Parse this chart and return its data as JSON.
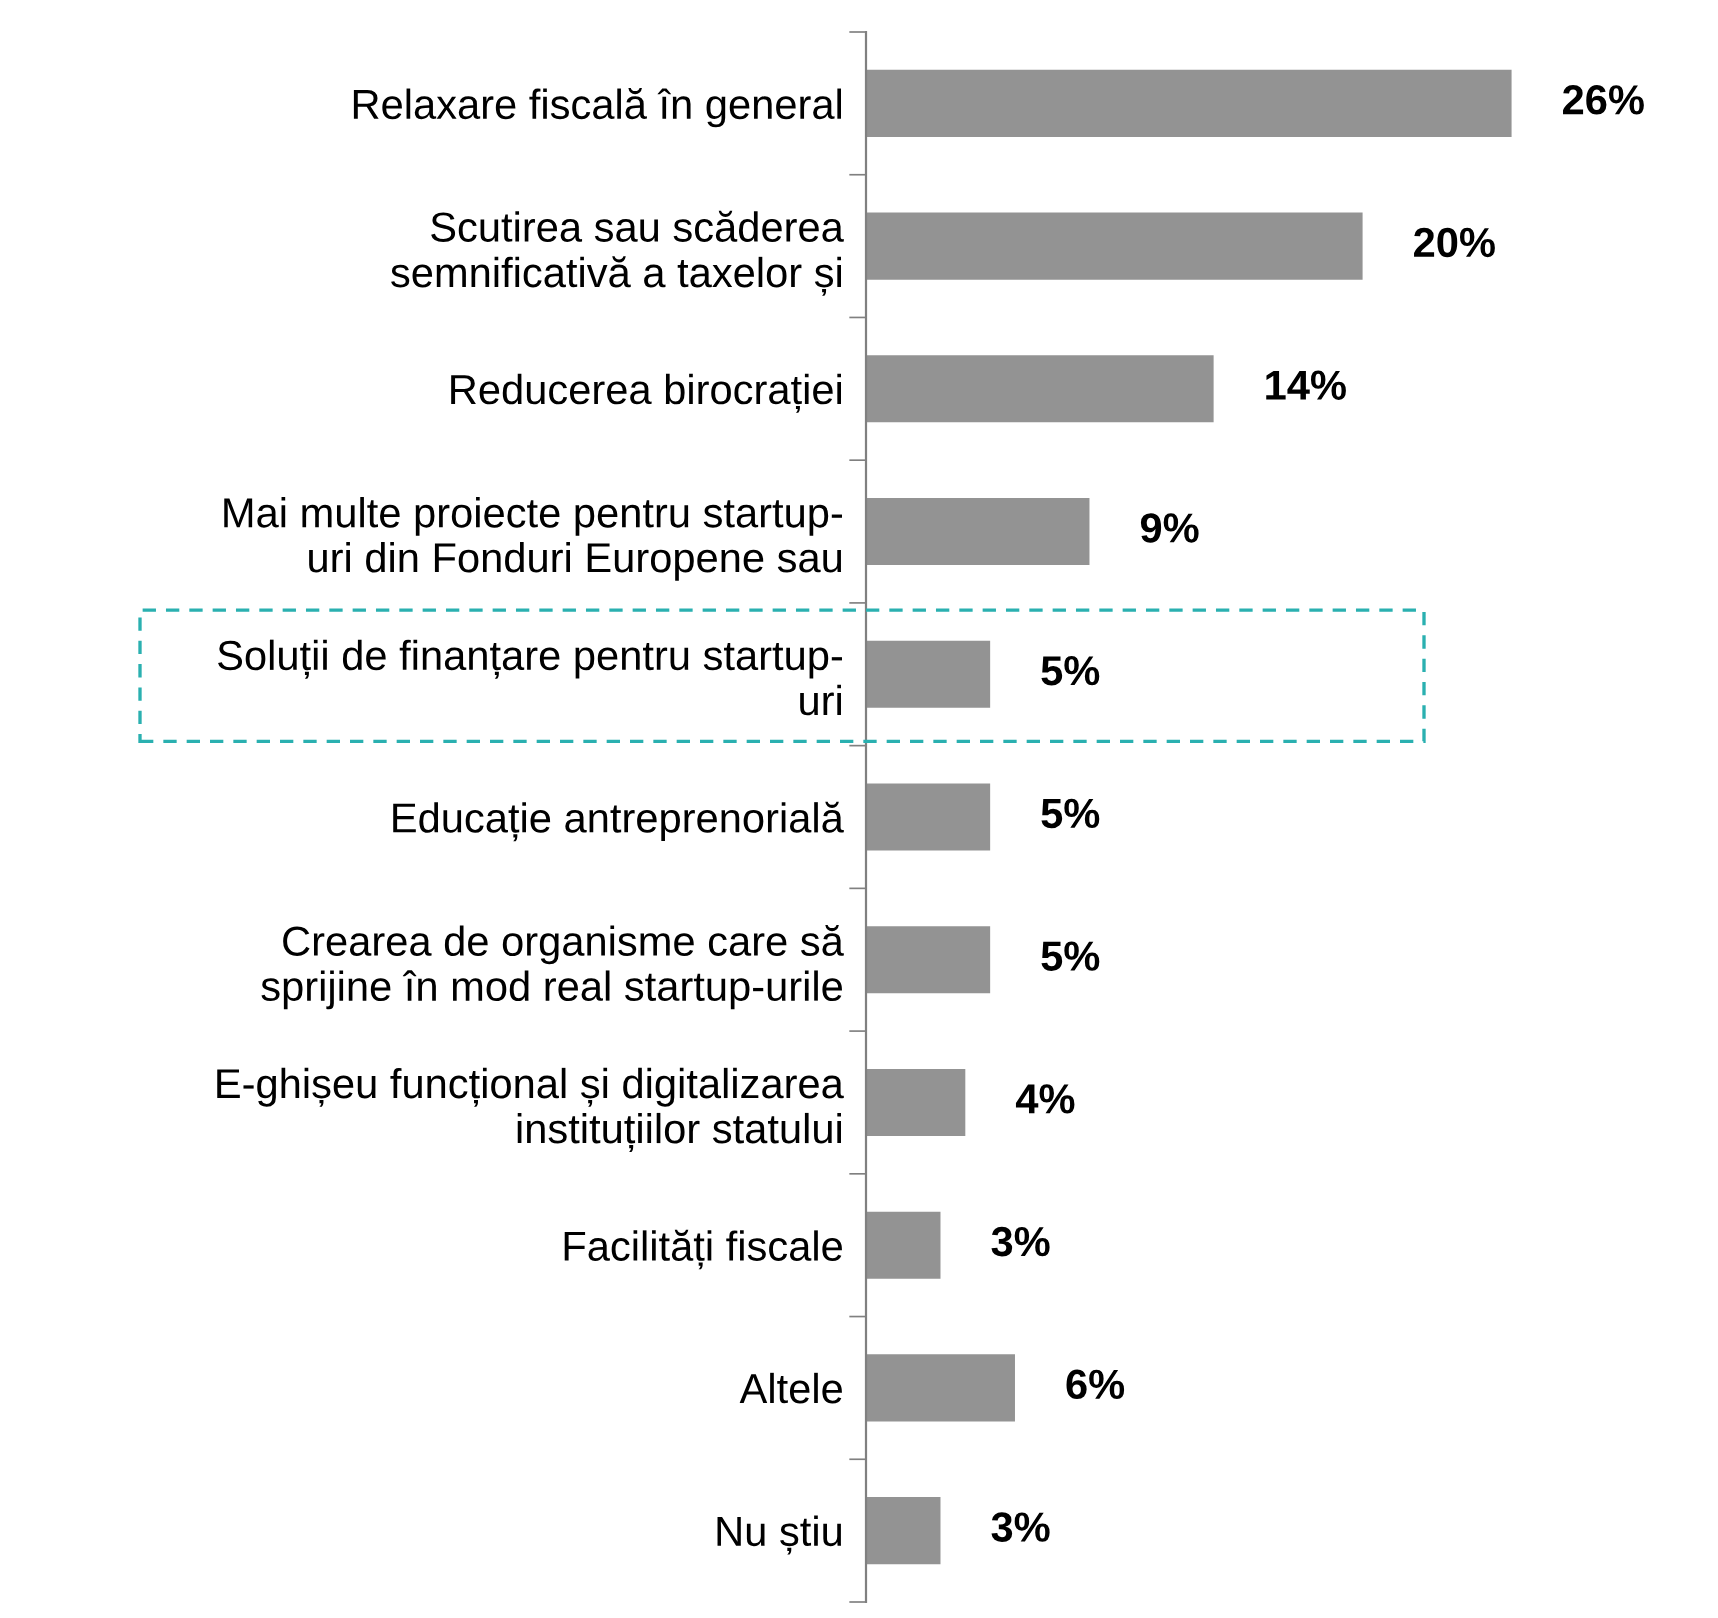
{
  "chart_data": {
    "type": "bar",
    "orientation": "horizontal",
    "categories": [
      "Relaxare fiscală în general",
      "Scutirea sau scăderea\nsemnificativă a taxelor și",
      "Reducerea birocrației",
      "Mai multe proiecte pentru startup-\nuri din Fonduri Europene sau",
      "Soluții de finanțare pentru startup-\nuri",
      "Educație antreprenorială",
      "Crearea de organisme care să\nsprijine în mod real startup-urile",
      "E-ghișeu funcțional și digitalizarea\ninstituțiilor statului",
      "Facilități fiscale",
      "Altele",
      "Nu știu"
    ],
    "values": [
      26,
      20,
      14,
      9,
      5,
      5,
      5,
      4,
      3,
      6,
      3
    ],
    "value_labels": [
      "26%",
      "20%",
      "14%",
      "9%",
      "5%",
      "5%",
      "5%",
      "4%",
      "3%",
      "6%",
      "3%"
    ],
    "color": "#939393",
    "tick_labels": "y"
  }
}
